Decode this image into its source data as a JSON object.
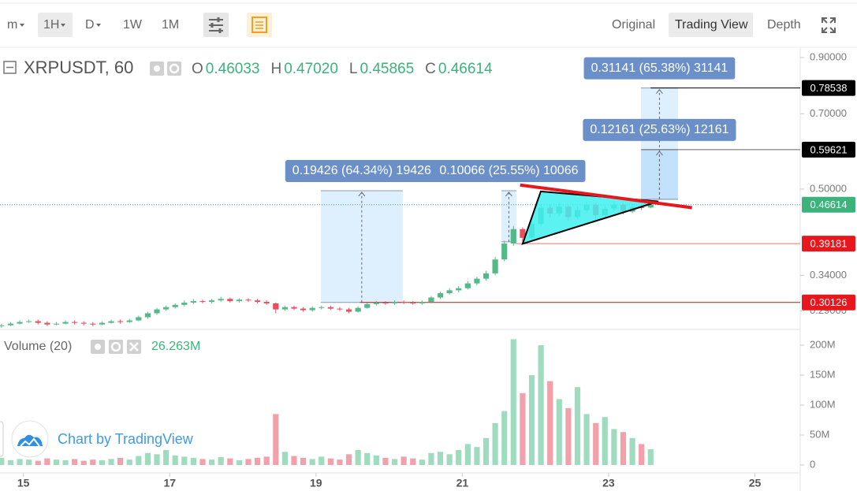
{
  "toolbar": {
    "intervals": [
      "m",
      "1H",
      "D",
      "1W",
      "1M"
    ],
    "views": [
      "Original",
      "Trading View",
      "Depth"
    ]
  },
  "chart_data": {
    "type": "candlestick",
    "title": "XRPUSDT, 60",
    "header": [
      {
        "name": "O",
        "value": 0.46033
      },
      {
        "name": "H",
        "value": 0.4702,
        "label": "0.47020"
      },
      {
        "name": "L",
        "value": 0.45865
      },
      {
        "name": "C",
        "value": 0.46614
      }
    ],
    "up_color": "#53b987",
    "down_color": "#eb4d5c",
    "yscale": "log",
    "xlim": [
      14.68,
      25.62
    ],
    "xticks": [
      15,
      17,
      19,
      21,
      23,
      25
    ],
    "ylim": [
      0.267,
      0.942
    ],
    "yticks": [
      {
        "value": 0.9,
        "label": "0.90000"
      },
      {
        "value": 0.7,
        "label": "0.70000"
      },
      {
        "value": 0.5,
        "label": "0.50000"
      },
      {
        "value": 0.34,
        "label": "0.34000"
      },
      {
        "value": 0.29,
        "label": "0.29000"
      }
    ],
    "x": [
      14.7,
      14.825,
      14.95,
      15.075,
      15.2,
      15.325,
      15.45,
      15.575,
      15.7,
      15.825,
      15.95,
      16.075,
      16.2,
      16.325,
      16.45,
      16.575,
      16.7,
      16.825,
      16.95,
      17.075,
      17.2,
      17.325,
      17.45,
      17.575,
      17.7,
      17.825,
      17.95,
      18.075,
      18.2,
      18.325,
      18.45,
      18.575,
      18.7,
      18.825,
      18.95,
      19.075,
      19.2,
      19.325,
      19.45,
      19.575,
      19.7,
      19.825,
      19.95,
      20.075,
      20.2,
      20.325,
      20.45,
      20.575,
      20.7,
      20.825,
      20.95,
      21.075,
      21.2,
      21.325,
      21.45,
      21.575,
      21.7,
      21.825,
      21.95,
      22.075,
      22.2,
      22.325,
      22.45,
      22.575,
      22.7,
      22.825,
      22.95,
      23.075,
      23.2,
      23.325,
      23.45,
      23.575
    ],
    "open": [
      0.271,
      0.272,
      0.274,
      0.276,
      0.277,
      0.275,
      0.273,
      0.274,
      0.276,
      0.275,
      0.274,
      0.273,
      0.275,
      0.277,
      0.276,
      0.278,
      0.282,
      0.287,
      0.292,
      0.295,
      0.298,
      0.301,
      0.303,
      0.302,
      0.304,
      0.306,
      0.303,
      0.305,
      0.304,
      0.302,
      0.3,
      0.292,
      0.295,
      0.293,
      0.291,
      0.294,
      0.295,
      0.293,
      0.292,
      0.289,
      0.294,
      0.299,
      0.301,
      0.3,
      0.302,
      0.301,
      0.3,
      0.302,
      0.308,
      0.314,
      0.318,
      0.321,
      0.328,
      0.335,
      0.343,
      0.365,
      0.392,
      0.418,
      0.402,
      0.428,
      0.46,
      0.448,
      0.462,
      0.441,
      0.455,
      0.466,
      0.445,
      0.458,
      0.466,
      0.452,
      0.461,
      0.46033
    ],
    "high": [
      0.274,
      0.276,
      0.278,
      0.279,
      0.279,
      0.277,
      0.276,
      0.278,
      0.278,
      0.277,
      0.276,
      0.277,
      0.279,
      0.279,
      0.28,
      0.284,
      0.289,
      0.294,
      0.297,
      0.3,
      0.304,
      0.306,
      0.305,
      0.306,
      0.309,
      0.308,
      0.307,
      0.307,
      0.306,
      0.304,
      0.301,
      0.297,
      0.297,
      0.295,
      0.296,
      0.297,
      0.297,
      0.295,
      0.294,
      0.296,
      0.301,
      0.303,
      0.303,
      0.304,
      0.304,
      0.303,
      0.304,
      0.31,
      0.316,
      0.321,
      0.324,
      0.331,
      0.338,
      0.347,
      0.369,
      0.397,
      0.424,
      0.421,
      0.433,
      0.468,
      0.466,
      0.47,
      0.466,
      0.462,
      0.472,
      0.47,
      0.464,
      0.473,
      0.47,
      0.467,
      0.468,
      0.4702
    ],
    "low": [
      0.269,
      0.271,
      0.273,
      0.275,
      0.273,
      0.271,
      0.272,
      0.273,
      0.273,
      0.272,
      0.271,
      0.272,
      0.274,
      0.274,
      0.275,
      0.277,
      0.28,
      0.285,
      0.29,
      0.293,
      0.296,
      0.299,
      0.3,
      0.3,
      0.302,
      0.301,
      0.301,
      0.302,
      0.3,
      0.298,
      0.287,
      0.29,
      0.291,
      0.289,
      0.289,
      0.292,
      0.291,
      0.29,
      0.287,
      0.288,
      0.293,
      0.297,
      0.298,
      0.298,
      0.299,
      0.298,
      0.298,
      0.3,
      0.306,
      0.312,
      0.315,
      0.319,
      0.325,
      0.332,
      0.34,
      0.362,
      0.388,
      0.392,
      0.399,
      0.424,
      0.44,
      0.444,
      0.434,
      0.437,
      0.45,
      0.438,
      0.441,
      0.454,
      0.447,
      0.449,
      0.455,
      0.45865
    ],
    "close": [
      0.272,
      0.274,
      0.276,
      0.277,
      0.275,
      0.273,
      0.274,
      0.276,
      0.275,
      0.274,
      0.273,
      0.275,
      0.277,
      0.276,
      0.278,
      0.282,
      0.287,
      0.292,
      0.295,
      0.298,
      0.301,
      0.303,
      0.302,
      0.304,
      0.306,
      0.303,
      0.305,
      0.304,
      0.302,
      0.3,
      0.292,
      0.295,
      0.293,
      0.291,
      0.294,
      0.295,
      0.293,
      0.292,
      0.289,
      0.294,
      0.299,
      0.301,
      0.3,
      0.302,
      0.301,
      0.3,
      0.302,
      0.308,
      0.314,
      0.318,
      0.321,
      0.328,
      0.335,
      0.343,
      0.365,
      0.392,
      0.418,
      0.402,
      0.428,
      0.46,
      0.448,
      0.462,
      0.441,
      0.455,
      0.466,
      0.445,
      0.458,
      0.466,
      0.452,
      0.461,
      0.46033,
      0.46614
    ],
    "volume": {
      "title": "Volume (20)",
      "value": 26.263,
      "label": "26.263M",
      "up_color": "#9fdcbf",
      "down_color": "#f2a1aa",
      "ylim": [
        0,
        223.7
      ],
      "yticks": [
        0,
        {
          "value": 50,
          "label": "50M"
        },
        {
          "value": 100,
          "label": "100M"
        },
        {
          "value": 150,
          "label": "150M"
        },
        {
          "value": 200,
          "label": "200M"
        }
      ],
      "values": [
        12,
        8,
        10,
        9,
        7,
        11,
        9,
        8,
        10,
        7,
        9,
        8,
        10,
        12,
        9,
        15,
        20,
        18,
        25,
        16,
        14,
        12,
        10,
        9,
        13,
        11,
        8,
        10,
        12,
        14,
        85,
        22,
        15,
        12,
        10,
        14,
        11,
        9,
        18,
        25,
        20,
        16,
        12,
        10,
        14,
        11,
        9,
        20,
        22,
        18,
        25,
        35,
        30,
        45,
        70,
        90,
        210,
        120,
        150,
        200,
        140,
        110,
        95,
        130,
        85,
        70,
        80,
        60,
        55,
        45,
        35,
        26.263
      ]
    },
    "price_lines": [
      {
        "value": 0.78538,
        "from": 23.575,
        "color": "#000000",
        "label_color": "#000000",
        "dashed": false
      },
      {
        "value": 0.59621,
        "from": 23.45,
        "color": "#666666",
        "label_color": "#000000",
        "dashed": false
      },
      {
        "value": 0.46614,
        "from": 14.68,
        "color": "#26a69a",
        "label_color": "#3bb37b",
        "dashed": true
      },
      {
        "value": 0.39181,
        "from": 21.74,
        "color": "#e57373",
        "label_color": "#e8161d",
        "dashed": false
      },
      {
        "value": 0.30126,
        "from": 19.6,
        "color": "#b71c1c",
        "label_color": "#e8161d",
        "dashed": false
      }
    ],
    "measurements": [
      {
        "label": "0.19426 (64.34%) 19426",
        "x": [
          19.065,
          20.186
        ],
        "y": [
          0.30126,
          0.4963
        ]
      },
      {
        "label": "0.10066 (25.55%) 10066",
        "x": [
          21.534,
          21.739
        ],
        "y": [
          0.3948,
          0.4963
        ]
      },
      {
        "label": "0.31141 (65.38%) 31141",
        "x": [
          23.442,
          23.949
        ],
        "y": [
          0.4775,
          0.78538
        ]
      },
      {
        "label": "0.12161 (25.63%) 12161",
        "x": [
          23.442,
          23.949
        ],
        "y": [
          0.4775,
          0.59621
        ]
      }
    ],
    "drawings": [
      {
        "type": "triangle",
        "points": [
          [
            21.825,
            0.3915
          ],
          [
            22.073,
            0.4947
          ],
          [
            23.68,
            0.473
          ]
        ],
        "fill": "#3ff0f0",
        "color": "#000000"
      },
      {
        "type": "trend_line",
        "points": [
          [
            21.79,
            0.509
          ],
          [
            24.14,
            0.46
          ]
        ],
        "color": "#e8161d"
      }
    ],
    "watermark": "Chart by TradingView"
  }
}
